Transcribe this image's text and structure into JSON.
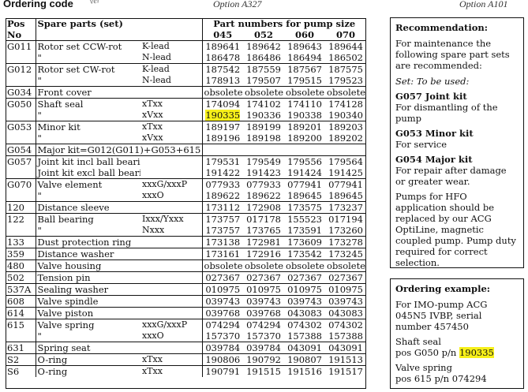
{
  "header": {
    "title": "Ordering code",
    "frag": "ver",
    "option_left": "Option A327",
    "option_right": "Option A101"
  },
  "table": {
    "col_pos": "Pos",
    "col_no": "No",
    "col_spare": "Spare parts (set)",
    "col_group": "Part numbers for pump size",
    "sizes": [
      "045",
      "052",
      "060",
      "070"
    ],
    "rows": [
      {
        "pos": "G011",
        "desc": "Rotor set CCW-rot",
        "code": "K-lead",
        "v": [
          "189641",
          "189642",
          "189643",
          "189644"
        ],
        "div": true
      },
      {
        "pos": "",
        "desc": "\"",
        "code": "N-lead",
        "v": [
          "186478",
          "186486",
          "186494",
          "186502"
        ],
        "div": false
      },
      {
        "pos": "G012",
        "desc": "Rotor set CW-rot",
        "code": "K-lead",
        "v": [
          "187542",
          "187559",
          "187567",
          "187575"
        ],
        "div": true
      },
      {
        "pos": "",
        "desc": "\"",
        "code": "N-lead",
        "v": [
          "178913",
          "179507",
          "179515",
          "179523"
        ],
        "div": false
      },
      {
        "pos": "G034",
        "desc": "Front cover",
        "code": "",
        "v": [
          "obsolete",
          "obsolete",
          "obsolete",
          "obsolete"
        ],
        "div": true
      },
      {
        "pos": "G050",
        "desc": "Shaft seal",
        "code": "xTxx",
        "v": [
          "174094",
          "174102",
          "174110",
          "174128"
        ],
        "div": true
      },
      {
        "pos": "",
        "desc": "\"",
        "code": "xVxx",
        "v": [
          "190335",
          "190336",
          "190338",
          "190340"
        ],
        "div": false,
        "hl": 0
      },
      {
        "pos": "G053",
        "desc": "Minor kit",
        "code": "xTxx",
        "v": [
          "189197",
          "189199",
          "189201",
          "189203"
        ],
        "div": true
      },
      {
        "pos": "",
        "desc": "\"",
        "code": "xVxx",
        "v": [
          "189196",
          "189198",
          "189200",
          "189202"
        ],
        "div": false
      },
      {
        "pos": "G054",
        "desc": "Major kit=G012(G011)+G053+615",
        "code": "",
        "v": [
          "",
          "",
          "",
          ""
        ],
        "div": true,
        "span": true
      },
      {
        "pos": "G057",
        "desc": "Joint kit incl ball bearing",
        "code": "",
        "v": [
          "179531",
          "179549",
          "179556",
          "179564"
        ],
        "div": true
      },
      {
        "pos": "",
        "desc": "Joint kit excl ball bearing",
        "code": "",
        "v": [
          "191422",
          "191423",
          "191424",
          "191425"
        ],
        "div": false
      },
      {
        "pos": "G070",
        "desc": "Valve element",
        "code": "xxxG/xxxP",
        "v": [
          "077933",
          "077933",
          "077941",
          "077941"
        ],
        "div": true
      },
      {
        "pos": "",
        "desc": "\"",
        "code": "xxxO",
        "v": [
          "189622",
          "189622",
          "189645",
          "189645"
        ],
        "div": false
      },
      {
        "pos": "120",
        "desc": "Distance sleeve",
        "code": "",
        "v": [
          "173112",
          "172908",
          "173575",
          "173237"
        ],
        "div": true
      },
      {
        "pos": "122",
        "desc": "Ball bearing",
        "code": "Ixxx/Yxxx",
        "v": [
          "173757",
          "017178",
          "155523",
          "017194"
        ],
        "div": true
      },
      {
        "pos": "",
        "desc": "\"",
        "code": "Nxxx",
        "v": [
          "173757",
          "173765",
          "173591",
          "173260"
        ],
        "div": false
      },
      {
        "pos": "133",
        "desc": "Dust protection ring",
        "code": "",
        "v": [
          "173138",
          "172981",
          "173609",
          "173278"
        ],
        "div": true
      },
      {
        "pos": "359",
        "desc": "Distance washer",
        "code": "",
        "v": [
          "173161",
          "172916",
          "173542",
          "173245"
        ],
        "div": true
      },
      {
        "pos": "480",
        "desc": "Valve housing",
        "code": "",
        "v": [
          "obsolete",
          "obsolete",
          "obsolete",
          "obsolete"
        ],
        "div": true
      },
      {
        "pos": "502",
        "desc": "Tension pin",
        "code": "",
        "v": [
          "027367",
          "027367",
          "027367",
          "027367"
        ],
        "div": true
      },
      {
        "pos": "537A",
        "desc": "Sealing washer",
        "code": "",
        "v": [
          "010975",
          "010975",
          "010975",
          "010975"
        ],
        "div": true
      },
      {
        "pos": "608",
        "desc": "Valve spindle",
        "code": "",
        "v": [
          "039743",
          "039743",
          "039743",
          "039743"
        ],
        "div": true
      },
      {
        "pos": "614",
        "desc": "Valve piston",
        "code": "",
        "v": [
          "039768",
          "039768",
          "043083",
          "043083"
        ],
        "div": true
      },
      {
        "pos": "615",
        "desc": "Valve spring",
        "code": "xxxG/xxxP",
        "v": [
          "074294",
          "074294",
          "074302",
          "074302"
        ],
        "div": true
      },
      {
        "pos": "",
        "desc": "\"",
        "code": "xxxO",
        "v": [
          "157370",
          "157370",
          "157388",
          "157388"
        ],
        "div": false
      },
      {
        "pos": "631",
        "desc": "Spring seat",
        "code": "",
        "v": [
          "039784",
          "039784",
          "043091",
          "043091"
        ],
        "div": true
      },
      {
        "pos": "S2",
        "desc": "O-ring",
        "code": "xTxx",
        "v": [
          "190806",
          "190792",
          "190807",
          "191513"
        ],
        "div": true
      },
      {
        "pos": "S6",
        "desc": "O-ring",
        "code": "xTxx",
        "v": [
          "190791",
          "191515",
          "191516",
          "191517"
        ],
        "div": true
      }
    ]
  },
  "recommendation": {
    "title": "Recommendation:",
    "intro": "For maintenance the following spare part sets are recommended:",
    "set_label": "Set:   To be used:",
    "kits": [
      {
        "name": "G057 Joint kit",
        "use": "For dismantling of the pump"
      },
      {
        "name": "G053 Minor kit",
        "use": "For service"
      },
      {
        "name": "G054 Major kit",
        "use": "For repair after damage or greater wear."
      }
    ],
    "note": "Pumps for HFO application should be replaced by our ACG OptiLine, magnetic coupled pump. Pump duty required for correct selection."
  },
  "example": {
    "title": "Ordering example:",
    "line1": "For IMO-pump ACG 045N5 IVBP, serial number 457450",
    "line2_label": "Shaft seal",
    "line2_pos": "pos G050 p/n ",
    "line2_pn": "190335",
    "line3_label": "Valve spring",
    "line3_pos": "pos 615 p/n  074294"
  },
  "colors": {
    "highlight": "#f7f01a"
  }
}
